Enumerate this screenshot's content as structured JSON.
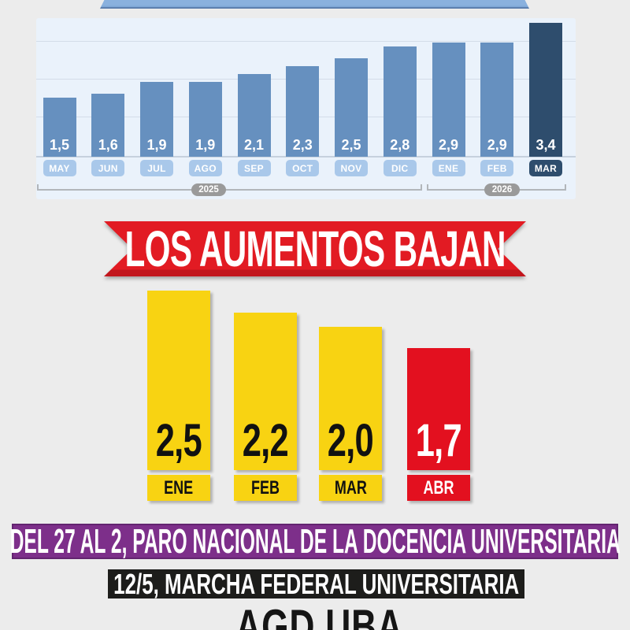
{
  "page": {
    "background": "#ececec"
  },
  "top_ribbon": {
    "color": "#8ab1de"
  },
  "chart_data": [
    {
      "type": "bar",
      "title": "",
      "categories": [
        "MAY",
        "JUN",
        "JUL",
        "AGO",
        "SEP",
        "OCT",
        "NOV",
        "DIC",
        "ENE",
        "FEB",
        "MAR"
      ],
      "values": [
        1.5,
        1.6,
        1.9,
        1.9,
        2.1,
        2.3,
        2.5,
        2.8,
        2.9,
        2.9,
        3.4
      ],
      "value_labels": [
        "1,5",
        "1,6",
        "1,9",
        "1,9",
        "2,1",
        "2,3",
        "2,5",
        "2,8",
        "2,9",
        "2,9",
        "3,4"
      ],
      "year_groups": [
        {
          "label": "2025",
          "from": "MAY",
          "to": "DIC"
        },
        {
          "label": "2026",
          "from": "ENE",
          "to": "MAR"
        }
      ],
      "highlight_index": 10,
      "bar_color": "#6690bf",
      "highlight_color": "#2e4d6d",
      "tag_color": "#a9c8ea",
      "panel_bg": "#eaf2fb",
      "xlabel": "",
      "ylabel": "",
      "ylim": [
        0,
        4.2
      ],
      "grid": true
    },
    {
      "type": "bar",
      "title": "LOS AUMENTOS BAJAN",
      "categories": [
        "ENE",
        "FEB",
        "MAR",
        "ABR"
      ],
      "values": [
        2.5,
        2.2,
        2.0,
        1.7
      ],
      "value_labels": [
        "2,5",
        "2,2",
        "2,0",
        "1,7"
      ],
      "bar_colors": [
        "#f8d312",
        "#f8d312",
        "#f8d312",
        "#e3101f"
      ],
      "text_colors": [
        "#111111",
        "#111111",
        "#111111",
        "#ffffff"
      ],
      "xlabel": "",
      "ylabel": "",
      "ylim": [
        0,
        2.6
      ],
      "grid": false
    }
  ],
  "banner": {
    "text": "LOS AUMENTOS BAJAN",
    "bg": "#e21b23"
  },
  "strike_banner": {
    "text": "DEL 27 AL 2, PARO NACIONAL DE LA DOCENCIA UNIVERSITARIA",
    "bg": "#7d2f8a"
  },
  "march_banner": {
    "text": "12/5, MARCHA FEDERAL UNIVERSITARIA",
    "bg": "#1d1d1b"
  },
  "footer_logo": {
    "text": "AGD UBA"
  }
}
